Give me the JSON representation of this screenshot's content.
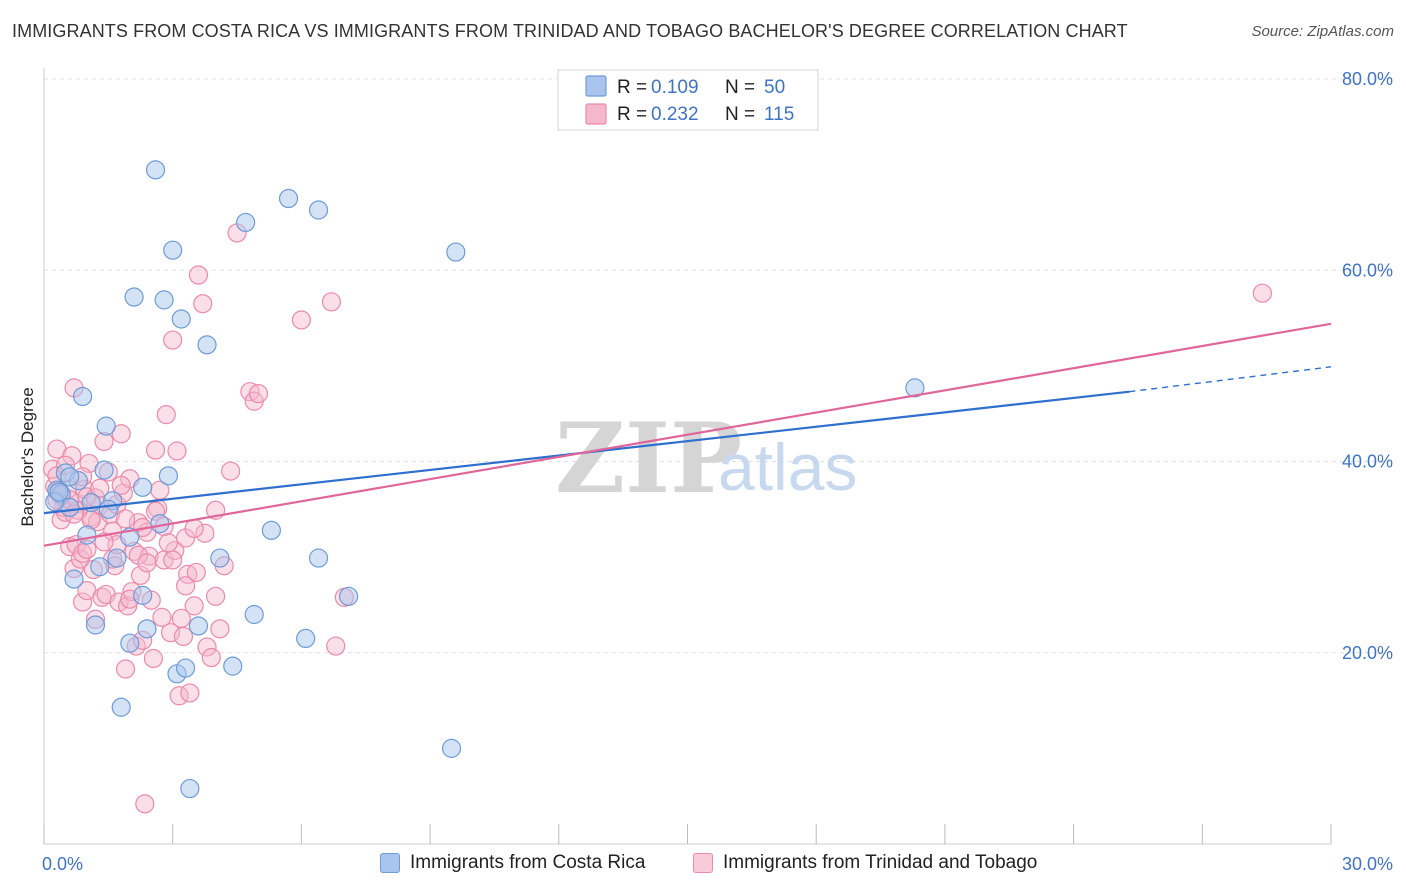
{
  "title": "IMMIGRANTS FROM COSTA RICA VS IMMIGRANTS FROM TRINIDAD AND TOBAGO BACHELOR'S DEGREE CORRELATION CHART",
  "source": "Source: ZipAtlas.com",
  "watermark": {
    "zip": "ZIP",
    "atlas": "atlas"
  },
  "legend": {
    "rows": [
      {
        "r_label": "R = ",
        "r_value": "0.109",
        "n_label": "N = ",
        "n_value": "50"
      },
      {
        "r_label": "R = ",
        "r_value": "0.232",
        "n_label": "N = ",
        "n_value": "115"
      }
    ]
  },
  "colors": {
    "blue_fill": "#a9c5ee",
    "blue_stroke": "#6e9bd9",
    "blue_line": "#2f6fce",
    "pink_fill": "#f5b8cb",
    "pink_stroke": "#eb8aa9",
    "pink_line": "#e0669a",
    "grid": "#e0e0e0",
    "axis_text": "#3f73c5"
  },
  "chart_data": {
    "type": "scatter",
    "title": "IMMIGRANTS FROM COSTA RICA VS IMMIGRANTS FROM TRINIDAD AND TOBAGO BACHELOR'S DEGREE CORRELATION CHART",
    "xlabel": "",
    "ylabel": "Bachelor's Degree",
    "xlim": [
      0,
      30
    ],
    "ylim": [
      0,
      80
    ],
    "x_ticks": [
      "0.0%",
      "30.0%"
    ],
    "y_ticks": [
      {
        "value": 20,
        "label": "20.0%"
      },
      {
        "value": 40,
        "label": "40.0%"
      },
      {
        "value": 60,
        "label": "60.0%"
      },
      {
        "value": 80,
        "label": "80.0%"
      }
    ],
    "grid": true,
    "legend_position": "top-center",
    "series": [
      {
        "name": "Immigrants from Costa Rica",
        "color": "blue",
        "trend": {
          "x0": 0,
          "y0": 34.6,
          "x1": 25.3,
          "y1": 47.3,
          "dash_to_x": 30,
          "dash_to_y": 49.9
        },
        "points": [
          [
            0.3,
            37.0
          ],
          [
            0.4,
            36.6
          ],
          [
            0.5,
            38.8
          ],
          [
            0.6,
            35.2
          ],
          [
            0.7,
            27.7
          ],
          [
            0.8,
            38.0
          ],
          [
            0.9,
            46.8
          ],
          [
            1.0,
            32.3
          ],
          [
            1.1,
            35.7
          ],
          [
            1.2,
            22.9
          ],
          [
            1.4,
            39.1
          ],
          [
            1.45,
            43.7
          ],
          [
            1.6,
            35.9
          ],
          [
            1.7,
            29.9
          ],
          [
            1.8,
            14.3
          ],
          [
            2.0,
            32.1
          ],
          [
            2.0,
            21.0
          ],
          [
            2.1,
            57.2
          ],
          [
            2.3,
            26.0
          ],
          [
            2.3,
            37.3
          ],
          [
            2.4,
            22.5
          ],
          [
            2.6,
            70.5
          ],
          [
            2.7,
            33.5
          ],
          [
            2.8,
            56.9
          ],
          [
            2.9,
            38.5
          ],
          [
            3.0,
            62.1
          ],
          [
            3.1,
            17.8
          ],
          [
            3.2,
            54.9
          ],
          [
            3.3,
            18.4
          ],
          [
            3.4,
            5.8
          ],
          [
            3.6,
            22.8
          ],
          [
            3.8,
            52.2
          ],
          [
            4.1,
            29.9
          ],
          [
            4.4,
            18.6
          ],
          [
            4.7,
            65.0
          ],
          [
            4.9,
            24.0
          ],
          [
            5.3,
            32.8
          ],
          [
            5.7,
            67.5
          ],
          [
            6.1,
            21.5
          ],
          [
            6.4,
            66.3
          ],
          [
            6.4,
            29.9
          ],
          [
            7.1,
            25.9
          ],
          [
            9.5,
            10.0
          ],
          [
            9.6,
            61.9
          ],
          [
            20.3,
            47.7
          ],
          [
            0.25,
            35.8
          ],
          [
            1.3,
            29.0
          ],
          [
            0.6,
            38.4
          ],
          [
            1.5,
            35.0
          ],
          [
            0.35,
            36.8
          ]
        ]
      },
      {
        "name": "Immigrants from Trinidad and Tobago",
        "color": "pink",
        "trend": {
          "x0": 0,
          "y0": 31.2,
          "x1": 30,
          "y1": 54.4
        },
        "points": [
          [
            0.2,
            39.2
          ],
          [
            0.25,
            37.4
          ],
          [
            0.3,
            38.5
          ],
          [
            0.3,
            41.3
          ],
          [
            0.35,
            37.0
          ],
          [
            0.4,
            33.9
          ],
          [
            0.45,
            35.2
          ],
          [
            0.5,
            34.7
          ],
          [
            0.55,
            37.1
          ],
          [
            0.6,
            31.1
          ],
          [
            0.65,
            40.6
          ],
          [
            0.7,
            47.7
          ],
          [
            0.7,
            28.8
          ],
          [
            0.75,
            31.3
          ],
          [
            0.8,
            35.6
          ],
          [
            0.85,
            29.8
          ],
          [
            0.9,
            30.4
          ],
          [
            0.9,
            25.3
          ],
          [
            0.95,
            37.1
          ],
          [
            1.0,
            26.5
          ],
          [
            1.05,
            39.8
          ],
          [
            1.1,
            34.2
          ],
          [
            1.15,
            28.7
          ],
          [
            1.2,
            23.5
          ],
          [
            1.25,
            33.7
          ],
          [
            1.3,
            35.4
          ],
          [
            1.35,
            25.8
          ],
          [
            1.4,
            42.1
          ],
          [
            1.45,
            26.1
          ],
          [
            1.5,
            38.9
          ],
          [
            1.55,
            34.5
          ],
          [
            1.6,
            32.7
          ],
          [
            1.65,
            29.1
          ],
          [
            1.7,
            35.5
          ],
          [
            1.75,
            25.3
          ],
          [
            1.8,
            42.9
          ],
          [
            1.85,
            36.7
          ],
          [
            1.9,
            18.3
          ],
          [
            1.95,
            24.9
          ],
          [
            2.0,
            38.2
          ],
          [
            2.05,
            26.4
          ],
          [
            2.1,
            30.6
          ],
          [
            2.15,
            20.7
          ],
          [
            2.2,
            33.6
          ],
          [
            2.25,
            28.1
          ],
          [
            2.3,
            21.3
          ],
          [
            2.35,
            4.2
          ],
          [
            2.4,
            32.6
          ],
          [
            2.45,
            30.1
          ],
          [
            2.5,
            25.5
          ],
          [
            2.55,
            19.4
          ],
          [
            2.6,
            41.2
          ],
          [
            2.65,
            35.1
          ],
          [
            2.7,
            37.0
          ],
          [
            2.75,
            23.7
          ],
          [
            2.8,
            29.7
          ],
          [
            2.85,
            44.9
          ],
          [
            2.95,
            22.1
          ],
          [
            3.0,
            52.7
          ],
          [
            3.05,
            30.7
          ],
          [
            3.1,
            41.1
          ],
          [
            3.15,
            15.5
          ],
          [
            3.2,
            23.6
          ],
          [
            3.25,
            21.7
          ],
          [
            3.3,
            32.0
          ],
          [
            3.35,
            28.2
          ],
          [
            3.4,
            15.8
          ],
          [
            3.5,
            24.9
          ],
          [
            3.55,
            28.4
          ],
          [
            3.6,
            59.5
          ],
          [
            3.7,
            56.5
          ],
          [
            3.75,
            32.5
          ],
          [
            3.8,
            20.6
          ],
          [
            3.9,
            19.5
          ],
          [
            4.0,
            25.9
          ],
          [
            4.1,
            22.5
          ],
          [
            4.2,
            29.1
          ],
          [
            4.35,
            39.0
          ],
          [
            4.5,
            63.9
          ],
          [
            4.8,
            47.3
          ],
          [
            4.9,
            46.3
          ],
          [
            5.0,
            47.1
          ],
          [
            6.0,
            54.8
          ],
          [
            6.7,
            56.7
          ],
          [
            6.8,
            20.7
          ],
          [
            7.0,
            25.8
          ],
          [
            28.4,
            57.6
          ],
          [
            1.0,
            36.3
          ],
          [
            0.5,
            39.6
          ],
          [
            1.2,
            36.2
          ],
          [
            2.2,
            30.2
          ],
          [
            0.8,
            34.9
          ],
          [
            1.6,
            29.8
          ],
          [
            2.6,
            34.8
          ],
          [
            3.0,
            29.7
          ],
          [
            0.4,
            36.4
          ],
          [
            1.9,
            34.0
          ],
          [
            1.3,
            37.2
          ],
          [
            2.8,
            33.2
          ],
          [
            0.6,
            36.0
          ],
          [
            1.1,
            33.9
          ],
          [
            2.3,
            33.1
          ],
          [
            0.9,
            38.4
          ],
          [
            1.7,
            31.3
          ],
          [
            3.3,
            27.0
          ],
          [
            2.0,
            25.6
          ],
          [
            1.4,
            31.6
          ],
          [
            0.7,
            34.5
          ],
          [
            2.4,
            29.4
          ],
          [
            1.8,
            37.5
          ],
          [
            0.3,
            36.0
          ],
          [
            1.0,
            30.8
          ],
          [
            2.9,
            31.5
          ],
          [
            3.5,
            33.0
          ],
          [
            4.0,
            34.9
          ]
        ]
      }
    ]
  },
  "bottom_legend": [
    {
      "label": "Immigrants from Costa Rica"
    },
    {
      "label": "Immigrants from Trinidad and Tobago"
    }
  ]
}
